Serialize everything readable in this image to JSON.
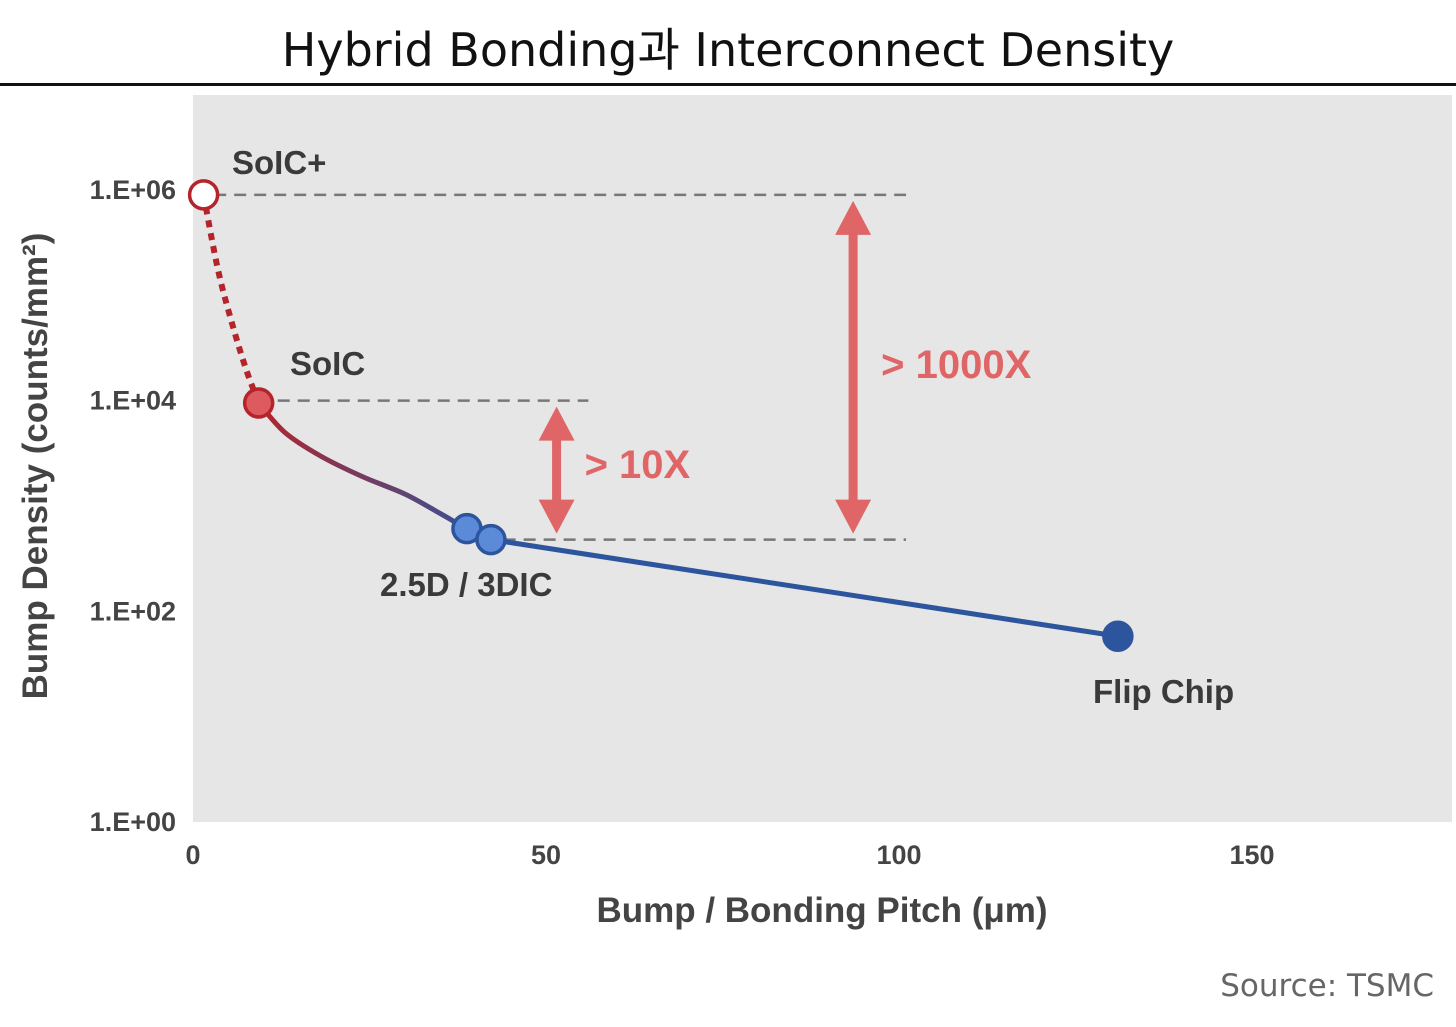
{
  "title": "Hybrid Bonding과 Interconnect Density",
  "source": "Source: TSMC",
  "colors": {
    "plot_bg": "#e6e6e6",
    "red": "#b5242a",
    "red_fill": "#dd5a5e",
    "blue": "#2d559e",
    "blue_light": "#5b8ad9",
    "arrow": "#e06566",
    "guide": "#777777",
    "axis_text": "#444444"
  },
  "chart_data": {
    "type": "line",
    "xlabel": "Bump / Bonding Pitch (μm)",
    "ylabel": "Bump Density (counts/mm²)",
    "xlim": [
      0,
      170
    ],
    "ylim": [
      1,
      10000000
    ],
    "yscale": "log",
    "xticks": [
      {
        "value": 0,
        "label": "0"
      },
      {
        "value": 50,
        "label": "50"
      },
      {
        "value": 100,
        "label": "100"
      },
      {
        "value": 150,
        "label": "150"
      }
    ],
    "yticks": [
      {
        "value": 1,
        "label": "1.E+00"
      },
      {
        "value": 100,
        "label": "1.E+02"
      },
      {
        "value": 10000,
        "label": "1.E+04"
      },
      {
        "value": 1000000,
        "label": "1.E+06"
      }
    ],
    "points": [
      {
        "label": "SoIC+",
        "x": 1.5,
        "y": 900000,
        "style": "hollow-red"
      },
      {
        "label": "SoIC",
        "x": 9.3,
        "y": 9500,
        "style": "filled-red"
      },
      {
        "label": "",
        "x": 38.8,
        "y": 610,
        "style": "filled-light-blue"
      },
      {
        "label": "2.5D / 3DIC",
        "x": 42.2,
        "y": 480,
        "style": "filled-light-blue"
      },
      {
        "label": "Flip Chip",
        "x": 131,
        "y": 58,
        "style": "filled-blue"
      }
    ],
    "curve_soicplus_to_soic": [
      [
        1.5,
        900000
      ],
      [
        3.5,
        180000
      ],
      [
        5.5,
        55000
      ],
      [
        7.5,
        20000
      ],
      [
        9.3,
        9500
      ]
    ],
    "curve_soic_to_3dic": [
      [
        9.3,
        9500
      ],
      [
        13,
        5000
      ],
      [
        18,
        3000
      ],
      [
        24,
        1900
      ],
      [
        30,
        1300
      ],
      [
        35,
        850
      ],
      [
        38.8,
        610
      ],
      [
        42.2,
        480
      ]
    ],
    "curve_3dic_to_flipchip": [
      [
        42.2,
        480
      ],
      [
        131,
        58
      ]
    ],
    "guides": [
      {
        "y": 900000,
        "x_from": 3,
        "x_to": 101
      },
      {
        "y": 10000,
        "x_from": 12,
        "x_to": 56
      },
      {
        "y": 480,
        "x_from": 44,
        "x_to": 101
      }
    ],
    "annotations": [
      {
        "text": "> 10X",
        "x": 51.5,
        "y_top": 10000,
        "y_bottom": 480
      },
      {
        "text": "> 1000X",
        "x": 93.5,
        "y_top": 900000,
        "y_bottom": 480
      }
    ]
  }
}
